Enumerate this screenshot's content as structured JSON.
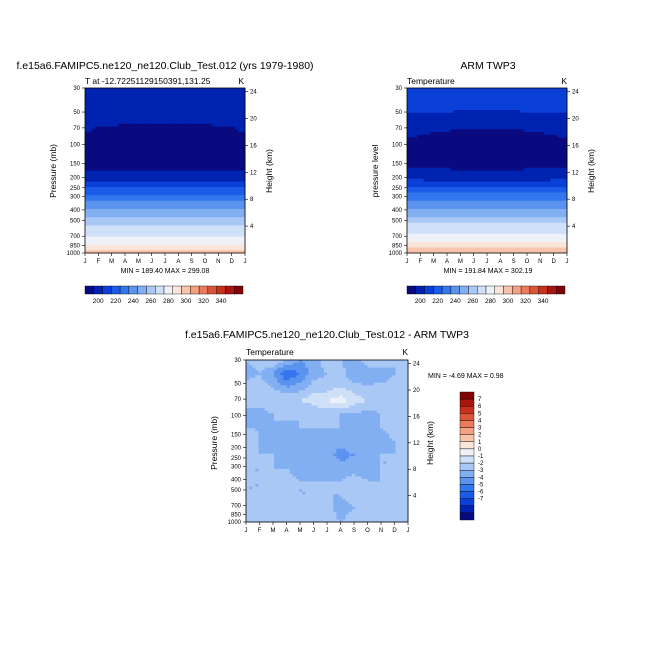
{
  "months": [
    "J",
    "F",
    "M",
    "A",
    "M",
    "J",
    "J",
    "A",
    "S",
    "O",
    "N",
    "D",
    "J"
  ],
  "pressure_ticks": [
    "30",
    "50",
    "70",
    "100",
    "150",
    "200",
    "250",
    "300",
    "400",
    "500",
    "700",
    "850",
    "1000"
  ],
  "pressure_values": [
    30,
    50,
    70,
    100,
    150,
    200,
    250,
    300,
    400,
    500,
    700,
    850,
    1000
  ],
  "height_ticks": [
    "24",
    "20",
    "16",
    "12",
    "8",
    "4"
  ],
  "height_values_km": [
    24,
    20,
    16,
    12,
    8,
    4
  ],
  "chart_data": [
    {
      "type": "heatmap",
      "title": "f.e15a6.FAMIPC5.ne120_ne120.Club_Test.012 (yrs 1979-1980)",
      "subtitle_left": "T at -12.72251129150391,131.25",
      "subtitle_right": "K",
      "xlabel": "",
      "ylabel": "Pressure (mb)",
      "ylabel_right": "Height (km)",
      "ylim": [
        1000,
        30
      ],
      "x": [
        "Jan",
        "Feb",
        "Mar",
        "Apr",
        "May",
        "Jun",
        "Jul",
        "Aug",
        "Sep",
        "Oct",
        "Nov",
        "Dec",
        "Jan"
      ],
      "stats": "MIN = 189.40 MAX = 299.08",
      "min": 189.4,
      "max": 299.08,
      "profile_K": [
        205,
        205,
        196,
        193,
        191,
        200,
        215,
        229,
        246,
        259,
        276,
        287,
        297
      ],
      "seasonal_dip_K": 5
    },
    {
      "type": "heatmap",
      "title": "ARM TWP3",
      "subtitle_left": "Temperature",
      "subtitle_right": "K",
      "xlabel": "",
      "ylabel": "pressure level",
      "ylabel_right": "Height (km)",
      "ylim": [
        1000,
        30
      ],
      "x": [
        "Jan",
        "Feb",
        "Mar",
        "Apr",
        "May",
        "Jun",
        "Jul",
        "Aug",
        "Sep",
        "Oct",
        "Nov",
        "Dec",
        "Jan"
      ],
      "stats": "MIN = 191.84 MAX = 302.19",
      "min": 191.84,
      "max": 302.19,
      "profile_K": [
        207,
        206,
        198,
        193,
        192,
        201,
        216,
        230,
        247,
        261,
        279,
        291,
        300
      ],
      "seasonal_dip_K": 3
    },
    {
      "type": "heatmap",
      "title": "f.e15a6.FAMIPC5.ne120_ne120.Club_Test.012 - ARM TWP3",
      "subtitle_left": "Temperature",
      "subtitle_right": "K",
      "xlabel": "",
      "ylabel": "Pressure (mb)",
      "ylabel_right": "Height (km)",
      "ylim": [
        1000,
        30
      ],
      "x": [
        "Jan",
        "Feb",
        "Mar",
        "Apr",
        "May",
        "Jun",
        "Jul",
        "Aug",
        "Sep",
        "Oct",
        "Nov",
        "Dec",
        "Jan"
      ],
      "stats": "MIN =  -4.69 MAX =   0.98",
      "min": -4.69,
      "max": 0.98,
      "diff_grid_K": [
        [
          -1.5,
          -1.0,
          -0.5,
          -1.5,
          -2.5,
          -2.0,
          -1.0,
          -1.5,
          -2.0,
          -1.0,
          -0.5,
          -1.5,
          -1.0
        ],
        [
          -2.0,
          -1.5,
          -2.5,
          -4.5,
          -3.5,
          -2.0,
          -1.5,
          -1.0,
          -2.5,
          -2.0,
          -2.5,
          -1.5,
          -1.5
        ],
        [
          -1.0,
          -1.0,
          -1.5,
          -2.5,
          -2.0,
          -1.0,
          -1.0,
          -0.5,
          -1.0,
          -1.5,
          -1.0,
          -1.0,
          -1.0
        ],
        [
          -1.5,
          -1.0,
          -0.5,
          -0.5,
          -0.5,
          0.0,
          0.5,
          1.0,
          0.0,
          -0.5,
          -0.5,
          -1.0,
          -1.5
        ],
        [
          -1.5,
          -2.0,
          -1.5,
          -1.0,
          -1.5,
          -1.5,
          -1.0,
          -1.5,
          -1.5,
          -2.0,
          -1.5,
          -1.5,
          -1.5
        ],
        [
          -1.5,
          -1.5,
          -1.5,
          -2.0,
          -1.5,
          -1.5,
          -1.5,
          -1.5,
          -2.5,
          -1.5,
          -1.5,
          -1.0,
          -1.5
        ],
        [
          -1.5,
          -1.5,
          -2.0,
          -2.0,
          -2.0,
          -1.5,
          -2.0,
          -2.0,
          -1.5,
          -1.5,
          -2.0,
          -1.5,
          -1.5
        ],
        [
          -1.0,
          -1.5,
          -1.5,
          -2.0,
          -1.5,
          -2.0,
          -2.0,
          -3.0,
          -2.5,
          -1.5,
          -1.5,
          -1.5,
          -1.5
        ],
        [
          -1.5,
          -1.5,
          -1.5,
          -1.5,
          -2.0,
          -2.0,
          -2.0,
          -2.0,
          -2.0,
          -2.0,
          -1.5,
          -1.5,
          -1.5
        ],
        [
          -1.5,
          -1.5,
          -1.0,
          -1.0,
          -1.5,
          -1.5,
          -1.5,
          -1.5,
          -1.0,
          -1.5,
          -1.5,
          -1.5,
          -1.5
        ],
        [
          -1.5,
          -1.5,
          -1.0,
          -1.0,
          -1.5,
          -1.5,
          -1.5,
          -1.5,
          -1.0,
          -0.5,
          -1.0,
          -1.5,
          -1.5
        ],
        [
          -1.0,
          -1.0,
          -1.0,
          -1.0,
          -1.5,
          -1.5,
          -1.0,
          -2.0,
          -1.5,
          -0.5,
          -1.0,
          -1.0,
          -1.0
        ],
        [
          -0.5,
          -0.5,
          -0.5,
          -1.0,
          -1.0,
          -1.0,
          -1.0,
          -1.5,
          -1.0,
          -0.5,
          -0.5,
          -0.5,
          -0.5
        ]
      ]
    }
  ],
  "colorbar_abs": {
    "labels": [
      "200",
      "220",
      "240",
      "260",
      "280",
      "300",
      "320",
      "340"
    ],
    "colors": [
      "#0a0a80",
      "#0022b0",
      "#0a3fd8",
      "#1a5ce8",
      "#3377ee",
      "#5b93ef",
      "#82aff2",
      "#a9c8f5",
      "#cfe0f8",
      "#eef2f8",
      "#fbe5da",
      "#f7c3aa",
      "#f2a184",
      "#ea7b5d",
      "#dd5537",
      "#c8301c",
      "#a81410",
      "#820505"
    ]
  },
  "colorbar_diff": {
    "labels": [
      "7",
      "6",
      "5",
      "4",
      "3",
      "2",
      "1",
      "0",
      "-1",
      "-2",
      "-3",
      "-4",
      "-5",
      "-6",
      "-7"
    ],
    "colors": [
      "#820505",
      "#a81410",
      "#c8301c",
      "#dd5537",
      "#ea7b5d",
      "#f2a184",
      "#f7c3aa",
      "#fbe5da",
      "#eef2f8",
      "#cfe0f8",
      "#a9c8f5",
      "#82aff2",
      "#5b93ef",
      "#3377ee",
      "#1a5ce8",
      "#0a3fd8",
      "#0022b0",
      "#0a0a80"
    ]
  }
}
